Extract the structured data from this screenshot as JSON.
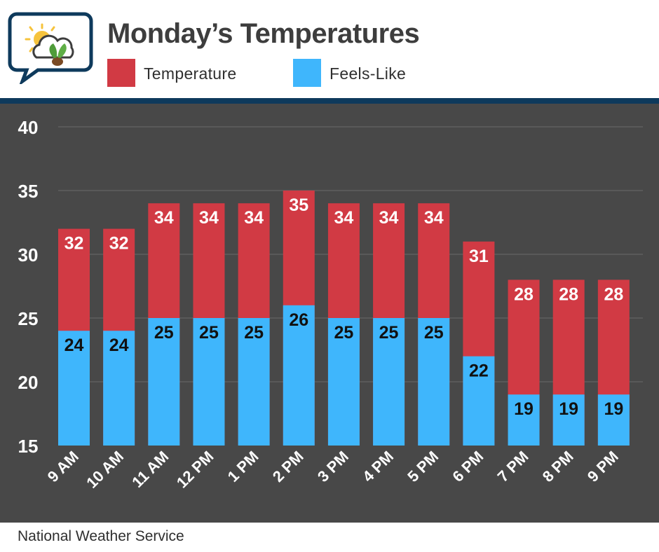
{
  "header": {
    "title": "Monday’s Temperatures"
  },
  "legend": [
    {
      "label": "Temperature",
      "color": "#d13a44"
    },
    {
      "label": "Feels-Like",
      "color": "#3fb6fc"
    }
  ],
  "source": "National Weather Service",
  "chart_data": {
    "type": "bar",
    "title": "Monday’s Temperatures",
    "categories": [
      "9 AM",
      "10 AM",
      "11 AM",
      "12 PM",
      "1 PM",
      "2 PM",
      "3 PM",
      "4 PM",
      "5 PM",
      "6 PM",
      "7 PM",
      "8 PM",
      "9 PM"
    ],
    "series": [
      {
        "name": "Temperature",
        "color": "#d13a44",
        "values": [
          32,
          32,
          34,
          34,
          34,
          35,
          34,
          34,
          34,
          31,
          28,
          28,
          28
        ]
      },
      {
        "name": "Feels-Like",
        "color": "#3fb6fc",
        "values": [
          24,
          24,
          25,
          25,
          25,
          26,
          25,
          25,
          25,
          22,
          19,
          19,
          19
        ]
      }
    ],
    "ylim": [
      15,
      40
    ],
    "yticks": [
      15,
      20,
      25,
      30,
      35,
      40
    ],
    "grid": true,
    "legend": "top-left",
    "xlabel": "",
    "ylabel": ""
  }
}
